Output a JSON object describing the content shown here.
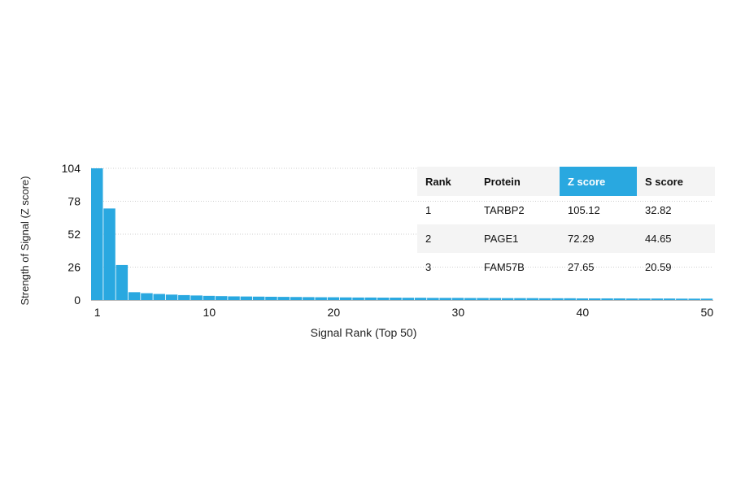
{
  "chart_data": {
    "type": "bar",
    "xlabel": "Signal Rank (Top 50)",
    "ylabel": "Strength of Signal (Z score)",
    "xlim": [
      1,
      50
    ],
    "ylim": [
      0,
      104
    ],
    "xticks": [
      "1",
      "10",
      "20",
      "30",
      "40",
      "50"
    ],
    "yticks": [
      "0",
      "26",
      "52",
      "78",
      "104"
    ],
    "x": [
      1,
      2,
      3,
      4,
      5,
      6,
      7,
      8,
      9,
      10,
      11,
      12,
      13,
      14,
      15,
      16,
      17,
      18,
      19,
      20,
      21,
      22,
      23,
      24,
      25,
      26,
      27,
      28,
      29,
      30,
      31,
      32,
      33,
      34,
      35,
      36,
      37,
      38,
      39,
      40,
      41,
      42,
      43,
      44,
      45,
      46,
      47,
      48,
      49,
      50
    ],
    "values": [
      105.12,
      72.29,
      27.65,
      6.2,
      5.4,
      4.8,
      4.3,
      3.9,
      3.6,
      3.3,
      3.1,
      2.9,
      2.8,
      2.7,
      2.6,
      2.5,
      2.4,
      2.3,
      2.2,
      2.2,
      2.1,
      2.0,
      2.0,
      1.9,
      1.9,
      1.8,
      1.8,
      1.7,
      1.7,
      1.7,
      1.6,
      1.6,
      1.6,
      1.5,
      1.5,
      1.5,
      1.4,
      1.4,
      1.4,
      1.3,
      1.3,
      1.3,
      1.3,
      1.2,
      1.2,
      1.2,
      1.2,
      1.1,
      1.1,
      1.1
    ],
    "grid": true,
    "color": "#29a8e0"
  },
  "table": {
    "headers": [
      "Rank",
      "Protein",
      "Z score",
      "S score"
    ],
    "rows": [
      [
        "1",
        "TARBP2",
        "105.12",
        "32.82"
      ],
      [
        "2",
        "PAGE1",
        "72.29",
        "44.65"
      ],
      [
        "3",
        "FAM57B",
        "27.65",
        "20.59"
      ]
    ],
    "highlight_color": "#29a8e0"
  }
}
